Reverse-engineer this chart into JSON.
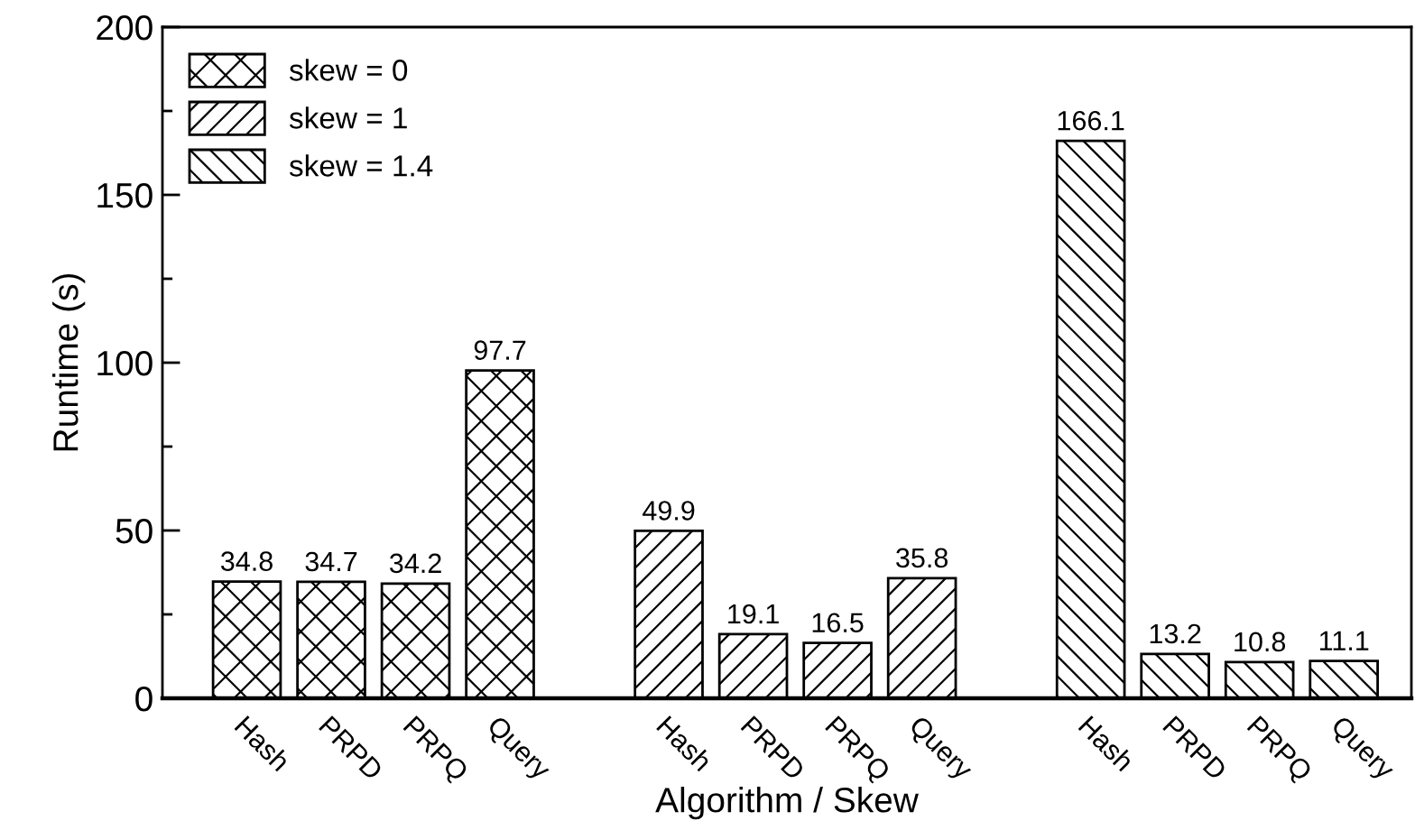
{
  "chart_data": {
    "type": "bar",
    "xlabel": "Algorithm / Skew",
    "ylabel": "Runtime (s)",
    "categories": [
      "Hash",
      "PRPD",
      "PRPQ",
      "Query",
      null,
      "Hash",
      "PRPD",
      "PRPQ",
      "Query",
      null,
      "Hash",
      "PRPD",
      "PRPQ",
      "Query"
    ],
    "series": [
      {
        "name": "skew = 0",
        "color": "#000000",
        "values": [
          34.8,
          34.7,
          34.2,
          97.7,
          null,
          null,
          null,
          null,
          null,
          null,
          null,
          null,
          null,
          null
        ]
      },
      {
        "name": "skew = 1",
        "color": "#000000",
        "values": [
          null,
          null,
          null,
          null,
          null,
          49.9,
          19.1,
          16.5,
          35.8,
          null,
          null,
          null,
          null,
          null
        ]
      },
      {
        "name": "skew = 1.4",
        "color": "#000000",
        "values": [
          null,
          null,
          null,
          null,
          null,
          null,
          null,
          null,
          null,
          null,
          166.1,
          13.2,
          10.8,
          11.1
        ]
      }
    ],
    "ylim": [
      0,
      200
    ],
    "yticks": [
      0,
      50,
      100,
      150,
      200
    ],
    "data_labels": true,
    "legend": "top left",
    "grid": false
  }
}
